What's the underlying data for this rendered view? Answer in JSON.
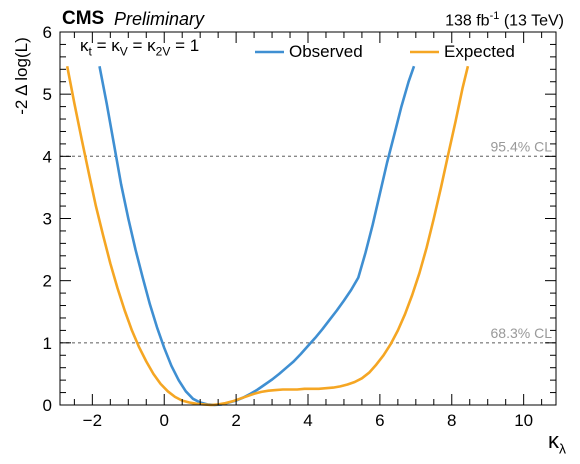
{
  "header": {
    "experiment": "CMS",
    "status": "Preliminary",
    "luminosity": "138 fb",
    "lumi_exponent": "-1",
    "energy": "(13 TeV)"
  },
  "annotation": {
    "kappa_text": "κ",
    "k_sub_t": "t",
    "eq1": "= κ",
    "k_sub_v": "V",
    "eq2": "= κ",
    "k_sub_2v": "2V",
    "eq3": "= 1"
  },
  "axes": {
    "ylabel": "-2 Δ log(L)",
    "xlabel_symbol": "κ",
    "xlabel_sub": "λ"
  },
  "colors": {
    "observed": "#3f8fd2",
    "expected": "#f5a623",
    "cl_line": "#888888"
  },
  "chart_data": {
    "type": "line",
    "xlabel": "κλ",
    "ylabel": "-2 Δ log(L)",
    "xlim": [
      -2.9,
      10.9
    ],
    "ylim": [
      0,
      6
    ],
    "x_ticks": [
      -2,
      0,
      2,
      4,
      6,
      8,
      10
    ],
    "y_ticks": [
      0,
      1,
      2,
      3,
      4,
      5,
      6
    ],
    "x_tick_labels": [
      "−2",
      "0",
      "2",
      "4",
      "6",
      "8",
      "10"
    ],
    "y_tick_labels": [
      "0",
      "1",
      "2",
      "3",
      "4",
      "5",
      "6"
    ],
    "grid": false,
    "legend_position": "top-right",
    "series": [
      {
        "name": "Observed",
        "color": "#3f8fd2",
        "x": [
          -1.8,
          -1.6,
          -1.4,
          -1.2,
          -1.0,
          -0.8,
          -0.6,
          -0.4,
          -0.2,
          0.0,
          0.2,
          0.4,
          0.6,
          0.8,
          1.0,
          1.2,
          1.4,
          1.6,
          1.8,
          2.0,
          2.2,
          2.4,
          2.6,
          2.8,
          3.0,
          3.2,
          3.4,
          3.6,
          3.8,
          4.0,
          4.2,
          4.4,
          4.6,
          4.8,
          5.0,
          5.2,
          5.4,
          5.6,
          5.8,
          6.0,
          6.2,
          6.4,
          6.6,
          6.8,
          6.95
        ],
        "y": [
          5.45,
          4.85,
          4.2,
          3.55,
          3.0,
          2.5,
          2.05,
          1.62,
          1.25,
          0.92,
          0.63,
          0.4,
          0.22,
          0.1,
          0.04,
          0.01,
          0.0,
          0.01,
          0.04,
          0.07,
          0.12,
          0.18,
          0.25,
          0.33,
          0.41,
          0.5,
          0.6,
          0.7,
          0.82,
          0.95,
          1.08,
          1.22,
          1.37,
          1.52,
          1.68,
          1.85,
          2.05,
          2.45,
          2.9,
          3.4,
          3.9,
          4.35,
          4.8,
          5.2,
          5.45
        ]
      },
      {
        "name": "Expected",
        "color": "#f5a623",
        "x": [
          -2.7,
          -2.5,
          -2.3,
          -2.1,
          -1.9,
          -1.7,
          -1.5,
          -1.3,
          -1.1,
          -0.9,
          -0.7,
          -0.5,
          -0.3,
          -0.1,
          0.1,
          0.3,
          0.5,
          0.7,
          0.9,
          1.1,
          1.3,
          1.5,
          1.7,
          1.9,
          2.1,
          2.3,
          2.5,
          2.7,
          2.9,
          3.1,
          3.3,
          3.5,
          3.7,
          3.9,
          4.1,
          4.3,
          4.5,
          4.7,
          4.9,
          5.1,
          5.3,
          5.5,
          5.7,
          5.9,
          6.1,
          6.3,
          6.5,
          6.7,
          6.9,
          7.1,
          7.3,
          7.5,
          7.7,
          7.9,
          8.1,
          8.3,
          8.45
        ],
        "y": [
          5.45,
          4.85,
          4.28,
          3.73,
          3.2,
          2.73,
          2.28,
          1.88,
          1.52,
          1.2,
          0.93,
          0.7,
          0.5,
          0.34,
          0.22,
          0.13,
          0.07,
          0.04,
          0.02,
          0.01,
          0.0,
          0.01,
          0.03,
          0.06,
          0.1,
          0.14,
          0.18,
          0.21,
          0.23,
          0.24,
          0.25,
          0.25,
          0.25,
          0.26,
          0.26,
          0.26,
          0.27,
          0.28,
          0.3,
          0.33,
          0.37,
          0.43,
          0.52,
          0.65,
          0.8,
          0.98,
          1.2,
          1.46,
          1.77,
          2.12,
          2.53,
          3.0,
          3.5,
          4.03,
          4.55,
          5.1,
          5.45
        ]
      }
    ],
    "reference_lines": [
      {
        "y": 4,
        "label": "95.4% CL"
      },
      {
        "y": 1,
        "label": "68.3% CL"
      }
    ]
  }
}
